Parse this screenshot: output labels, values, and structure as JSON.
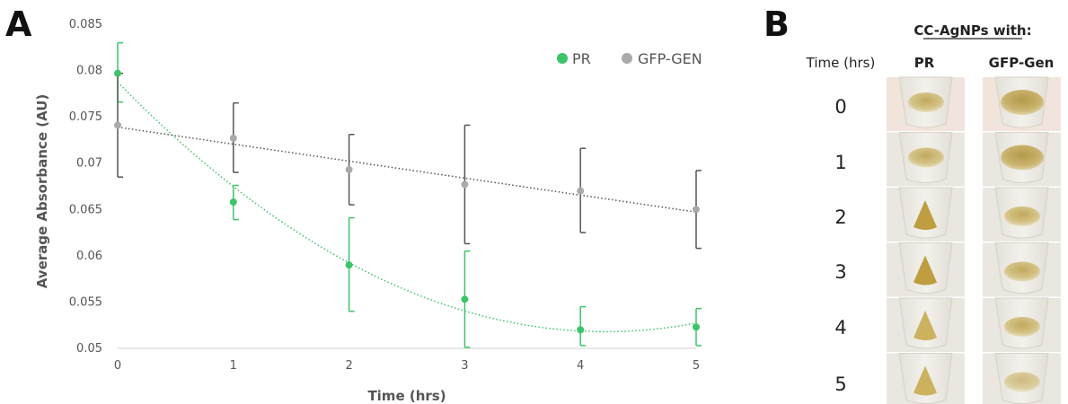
{
  "panels": {
    "a_label": "A",
    "b_label": "B"
  },
  "chart_data": {
    "type": "scatter",
    "xlabel": "Time (hrs)",
    "ylabel": "Average Absorbance (AU)",
    "xlim": [
      0,
      5
    ],
    "ylim": [
      0.05,
      0.085
    ],
    "x_ticks": [
      "0",
      "1",
      "2",
      "3",
      "4",
      "5"
    ],
    "y_ticks": [
      "0.05",
      "0.055",
      "0.06",
      "0.065",
      "0.07",
      "0.075",
      "0.08",
      "0.085"
    ],
    "grid": false,
    "legend_position": "top-right",
    "x": [
      0,
      1,
      2,
      3,
      4,
      5
    ],
    "series": [
      {
        "name": "PR",
        "color": "#3cc46a",
        "values": [
          0.0797,
          0.0658,
          0.059,
          0.0553,
          0.052,
          0.0523
        ],
        "error_low": [
          0.0766,
          0.0639,
          0.054,
          0.0501,
          0.0503,
          0.0503
        ],
        "error_high": [
          0.083,
          0.0676,
          0.0641,
          0.0605,
          0.0545,
          0.0543
        ],
        "trendline": "polynomial-2"
      },
      {
        "name": "GFP-GEN",
        "color": "#aaaaaa",
        "error_color": "#555555",
        "values": [
          0.0741,
          0.0727,
          0.0693,
          0.0677,
          0.067,
          0.065
        ],
        "error_low": [
          0.0685,
          0.069,
          0.0655,
          0.0613,
          0.0625,
          0.0608
        ],
        "error_high": [
          0.0797,
          0.0765,
          0.0731,
          0.0741,
          0.0716,
          0.0692
        ],
        "trendline": "linear"
      }
    ]
  },
  "panel_b": {
    "header": "CC-AgNPs with:",
    "time_header": "Time (hrs)",
    "col_pr": "PR",
    "col_gfp": "GFP-Gen",
    "col_pr_color": "#3cc46a",
    "times": [
      "0",
      "1",
      "2",
      "3",
      "4",
      "5"
    ]
  }
}
